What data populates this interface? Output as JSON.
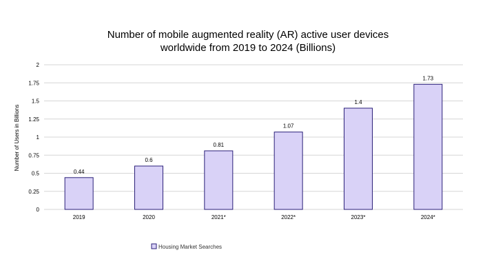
{
  "chart_data": {
    "type": "bar",
    "title": "Number of mobile augmented reality (AR) active user devices worldwide from 2019 to 2024 (Billions)",
    "title_lines": [
      "Number of mobile augmented reality (AR) active user devices",
      "worldwide from 2019 to 2024 (Billions)"
    ],
    "xlabel": "",
    "ylabel": "Number of Users in Billions",
    "categories": [
      "2019",
      "2020",
      "2021*",
      "2022*",
      "2023*",
      "2024*"
    ],
    "series": [
      {
        "name": "Housing Market Searches",
        "values": [
          0.44,
          0.6,
          0.81,
          1.07,
          1.4,
          1.73
        ],
        "data_labels": [
          "0.44",
          "0.6",
          "0.81",
          "1.07",
          "1.4",
          "1.73"
        ]
      }
    ],
    "ylim": [
      0,
      2
    ],
    "yticks": [
      "0",
      "0.25",
      "0.5",
      "0.75",
      "1",
      "1.25",
      "1.5",
      "1.75",
      "2"
    ],
    "grid": true,
    "legend_position": "bottom-left",
    "colors": {
      "bar_fill": "#d9d2f7",
      "bar_stroke": "#2a1f78",
      "grid": "#d6d6d6"
    }
  }
}
